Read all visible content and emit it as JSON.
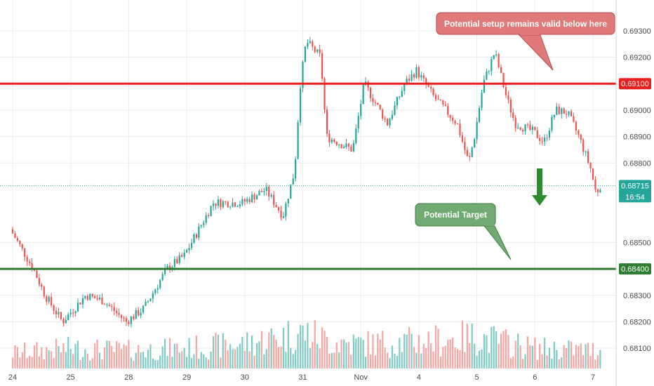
{
  "chart_data": {
    "type": "candlestick",
    "x_ticks": [
      {
        "label": "24",
        "day": 0
      },
      {
        "label": "25",
        "day": 1
      },
      {
        "label": "28",
        "day": 2
      },
      {
        "label": "29",
        "day": 3
      },
      {
        "label": "30",
        "day": 4
      },
      {
        "label": "31",
        "day": 5
      },
      {
        "label": "Nov",
        "day": 6
      },
      {
        "label": "4",
        "day": 7
      },
      {
        "label": "5",
        "day": 8
      },
      {
        "label": "6",
        "day": 9
      },
      {
        "label": "7",
        "day": 10
      }
    ],
    "y_ticks": [
      "0.69300",
      "0.69200",
      "0.69000",
      "0.68900",
      "0.68800",
      "0.68500",
      "0.68300",
      "0.68200",
      "0.68100"
    ],
    "ylim": [
      0.6805,
      0.6935
    ],
    "horizontal_levels": [
      {
        "label": "0.69100",
        "value": 0.691,
        "color": "#e8201f"
      },
      {
        "label": "0.68400",
        "value": 0.684,
        "color": "#2e7d32"
      }
    ],
    "current_price": {
      "label": "0.68715",
      "value": 0.68715,
      "countdown": "16:54",
      "color": "#26a69a"
    },
    "annotations": [
      {
        "text": "Potential setup remains valid below here"
      },
      {
        "text": "Potential Target"
      }
    ],
    "price_path": [
      {
        "day": 0.0,
        "price": 0.6855
      },
      {
        "day": 0.4,
        "price": 0.684
      },
      {
        "day": 0.6,
        "price": 0.683
      },
      {
        "day": 0.9,
        "price": 0.682
      },
      {
        "day": 1.3,
        "price": 0.683
      },
      {
        "day": 1.6,
        "price": 0.6828
      },
      {
        "day": 2.0,
        "price": 0.682
      },
      {
        "day": 2.3,
        "price": 0.6825
      },
      {
        "day": 2.7,
        "price": 0.684
      },
      {
        "day": 3.0,
        "price": 0.6845
      },
      {
        "day": 3.5,
        "price": 0.6865
      },
      {
        "day": 4.0,
        "price": 0.6865
      },
      {
        "day": 4.4,
        "price": 0.687
      },
      {
        "day": 4.7,
        "price": 0.686
      },
      {
        "day": 4.9,
        "price": 0.6877
      },
      {
        "day": 5.0,
        "price": 0.691
      },
      {
        "day": 5.1,
        "price": 0.6926
      },
      {
        "day": 5.35,
        "price": 0.692
      },
      {
        "day": 5.45,
        "price": 0.689
      },
      {
        "day": 5.9,
        "price": 0.6885
      },
      {
        "day": 6.1,
        "price": 0.691
      },
      {
        "day": 6.5,
        "price": 0.6895
      },
      {
        "day": 6.8,
        "price": 0.691
      },
      {
        "day": 7.0,
        "price": 0.6915
      },
      {
        "day": 7.3,
        "price": 0.6905
      },
      {
        "day": 7.7,
        "price": 0.6895
      },
      {
        "day": 7.9,
        "price": 0.688
      },
      {
        "day": 8.0,
        "price": 0.689
      },
      {
        "day": 8.15,
        "price": 0.691
      },
      {
        "day": 8.35,
        "price": 0.6922
      },
      {
        "day": 8.55,
        "price": 0.6905
      },
      {
        "day": 8.7,
        "price": 0.6895
      },
      {
        "day": 9.0,
        "price": 0.6892
      },
      {
        "day": 9.2,
        "price": 0.6888
      },
      {
        "day": 9.4,
        "price": 0.69
      },
      {
        "day": 9.6,
        "price": 0.6899
      },
      {
        "day": 9.8,
        "price": 0.689
      },
      {
        "day": 10.0,
        "price": 0.6878
      },
      {
        "day": 10.1,
        "price": 0.6868
      },
      {
        "day": 10.15,
        "price": 0.68715
      }
    ],
    "volume_path": [
      {
        "day": 0.0,
        "v": 0.35
      },
      {
        "day": 1.0,
        "v": 0.45
      },
      {
        "day": 2.0,
        "v": 0.4
      },
      {
        "day": 3.0,
        "v": 0.45
      },
      {
        "day": 4.0,
        "v": 0.55
      },
      {
        "day": 5.0,
        "v": 0.8
      },
      {
        "day": 5.5,
        "v": 0.6
      },
      {
        "day": 6.0,
        "v": 0.55
      },
      {
        "day": 7.0,
        "v": 0.6
      },
      {
        "day": 8.0,
        "v": 0.7
      },
      {
        "day": 9.0,
        "v": 0.45
      },
      {
        "day": 10.15,
        "v": 0.4
      }
    ],
    "colors": {
      "bull": "#26a69a",
      "bear": "#ef5350",
      "vol_bull": "#80cbc4",
      "vol_bear": "#f4a6a3",
      "grid": "#e9ecf0"
    }
  }
}
